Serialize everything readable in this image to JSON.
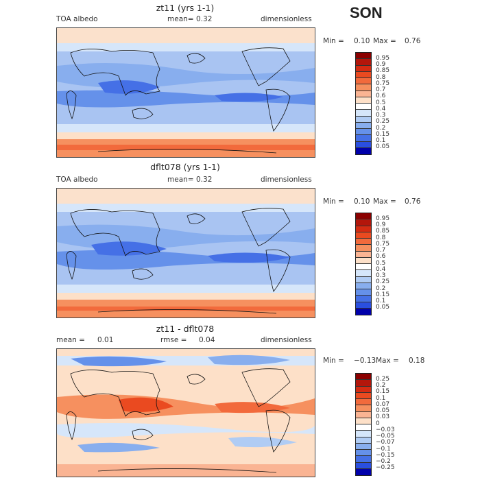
{
  "season": "SON",
  "panels": [
    {
      "title": "zt11 (yrs 1-1)",
      "left_label": "TOA albedo",
      "mean_label": "mean=",
      "mean_value": "0.32",
      "units": "dimensionless",
      "min_label": "Min =",
      "min_value": "0.10",
      "max_label": "Max =",
      "max_value": "0.76",
      "ticks": [
        "0.95",
        "0.9",
        "0.85",
        "0.8",
        "0.75",
        "0.7",
        "0.6",
        "0.5",
        "0.4",
        "0.3",
        "0.25",
        "0.2",
        "0.15",
        "0.1",
        "0.05"
      ],
      "colors": [
        "#8b0000",
        "#b3160b",
        "#d42b12",
        "#ea4a20",
        "#f26a3c",
        "#f6905f",
        "#fab493",
        "#fde0c8",
        "#ffffff",
        "#d5e6fa",
        "#b0ccf4",
        "#88aeee",
        "#6591ea",
        "#4570e6",
        "#2a4fe0",
        "#0000aa"
      ]
    },
    {
      "title": "dflt078 (yrs 1-1)",
      "left_label": "TOA albedo",
      "mean_label": "mean=",
      "mean_value": "0.32",
      "units": "dimensionless",
      "min_label": "Min =",
      "min_value": "0.10",
      "max_label": "Max =",
      "max_value": "0.76",
      "ticks": [
        "0.95",
        "0.9",
        "0.85",
        "0.8",
        "0.75",
        "0.7",
        "0.6",
        "0.5",
        "0.4",
        "0.3",
        "0.25",
        "0.2",
        "0.15",
        "0.1",
        "0.05"
      ],
      "colors": [
        "#8b0000",
        "#b3160b",
        "#d42b12",
        "#ea4a20",
        "#f26a3c",
        "#f6905f",
        "#fab493",
        "#fde0c8",
        "#ffffff",
        "#d5e6fa",
        "#b0ccf4",
        "#88aeee",
        "#6591ea",
        "#4570e6",
        "#2a4fe0",
        "#0000aa"
      ]
    },
    {
      "title": "zt11 - dflt078",
      "left_label": "mean =",
      "left_value": "0.01",
      "mean_label": "rmse =",
      "mean_value": "0.04",
      "units": "dimensionless",
      "min_label": "Min =",
      "min_value": "−0.13",
      "max_label": "Max =",
      "max_value": "0.18",
      "ticks": [
        "0.25",
        "0.2",
        "0.15",
        "0.1",
        "0.07",
        "0.05",
        "0.03",
        "0",
        "−0.03",
        "−0.05",
        "−0.07",
        "−0.1",
        "−0.15",
        "−0.2",
        "−0.25"
      ],
      "colors": [
        "#8b0000",
        "#b3160b",
        "#d42b12",
        "#ea4a20",
        "#f26a3c",
        "#f6905f",
        "#fab493",
        "#fde0c8",
        "#ffffff",
        "#d5e6fa",
        "#b0ccf4",
        "#88aeee",
        "#6591ea",
        "#4570e6",
        "#2a4fe0",
        "#0000aa"
      ]
    }
  ]
}
